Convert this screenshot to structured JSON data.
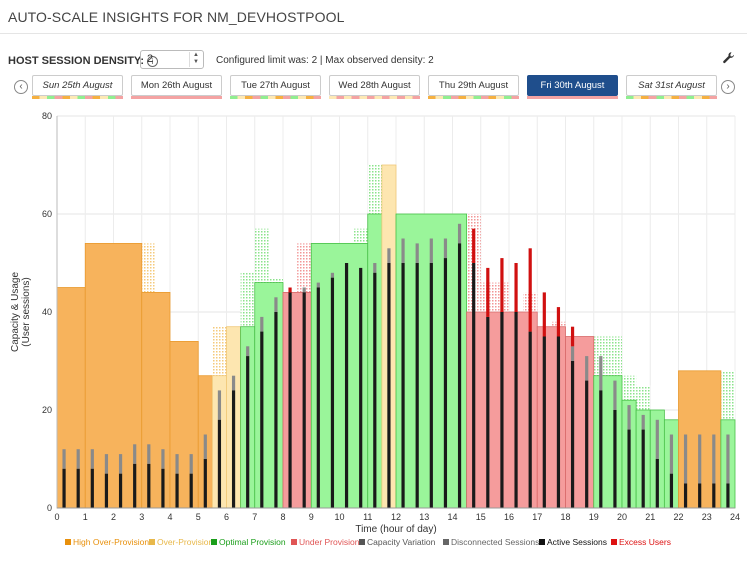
{
  "header": {
    "title": "AUTO-SCALE INSIGHTS FOR NM_DEVHOSTPOOL"
  },
  "density": {
    "label": "HOST SESSION DENSITY:",
    "value": "2",
    "info": "Configured limit was: 2 | Max observed density: 2"
  },
  "days": [
    {
      "label": "Sun 25th August",
      "active": false,
      "italic": true
    },
    {
      "label": "Mon 26th August",
      "active": false,
      "italic": false
    },
    {
      "label": "Tue 27th August",
      "active": false,
      "italic": false
    },
    {
      "label": "Wed 28th August",
      "active": false,
      "italic": false
    },
    {
      "label": "Thu 29th August",
      "active": false,
      "italic": false
    },
    {
      "label": "Fri 30th August",
      "active": true,
      "italic": false
    },
    {
      "label": "Sat 31st August",
      "active": false,
      "italic": true
    }
  ],
  "colors": {
    "high_over": "#f5b041",
    "over": "#fde9b5",
    "optimal": "#90ee90",
    "under": "#f4a3a3",
    "capacity_variation": "#999999",
    "disconnected": "#a0a0a0",
    "active": "#222222",
    "excess": "#dd1111"
  },
  "chart_data": {
    "type": "bar",
    "xlabel": "Time (hour of day)",
    "ylabel": "Capacity & Usage (User sessions)",
    "ylabel_lines": [
      "Capacity & Usage",
      "(User sessions)"
    ],
    "ylim": [
      0,
      80
    ],
    "yticks": [
      0,
      20,
      40,
      60,
      80
    ],
    "xlim": [
      0,
      24
    ],
    "xticks": [
      0,
      1,
      2,
      3,
      4,
      5,
      6,
      7,
      8,
      9,
      10,
      11,
      12,
      13,
      14,
      15,
      16,
      17,
      18,
      19,
      20,
      21,
      22,
      23,
      24
    ],
    "grid": true,
    "legend_position": "bottom",
    "legend": [
      {
        "label": "High Over-Provision",
        "color": "#e8900c"
      },
      {
        "label": "Over-Provision",
        "color": "#e8b84a"
      },
      {
        "label": "Optimal Provision",
        "color": "#1a9e1a"
      },
      {
        "label": "Under Provision",
        "color": "#e05555"
      },
      {
        "label": "Capacity Variation",
        "color": "#555555"
      },
      {
        "label": "Disconnected Sessions",
        "color": "#666666"
      },
      {
        "label": "Active Sessions",
        "color": "#111111"
      },
      {
        "label": "Excess Users",
        "color": "#dd1111"
      }
    ],
    "capacity_segments": [
      {
        "start": 0,
        "end": 1,
        "value": 45,
        "status": "high_over"
      },
      {
        "start": 1,
        "end": 3,
        "value": 54,
        "status": "high_over"
      },
      {
        "start": 3,
        "end": 4,
        "value": 44,
        "status": "high_over"
      },
      {
        "start": 4,
        "end": 5,
        "value": 34,
        "status": "high_over"
      },
      {
        "start": 5,
        "end": 5.5,
        "value": 27,
        "status": "high_over"
      },
      {
        "start": 5.5,
        "end": 6,
        "value": 27,
        "status": "over"
      },
      {
        "start": 6,
        "end": 6.5,
        "value": 37,
        "status": "over"
      },
      {
        "start": 6.5,
        "end": 7,
        "value": 37,
        "status": "optimal"
      },
      {
        "start": 7,
        "end": 8,
        "value": 46,
        "status": "optimal"
      },
      {
        "start": 8,
        "end": 9,
        "value": 44,
        "status": "under"
      },
      {
        "start": 9,
        "end": 11,
        "value": 54,
        "status": "optimal"
      },
      {
        "start": 11,
        "end": 11.5,
        "value": 60,
        "status": "optimal"
      },
      {
        "start": 11.5,
        "end": 12,
        "value": 70,
        "status": "over"
      },
      {
        "start": 12,
        "end": 14.5,
        "value": 60,
        "status": "optimal"
      },
      {
        "start": 14.5,
        "end": 17,
        "value": 40,
        "status": "under"
      },
      {
        "start": 17,
        "end": 18,
        "value": 37,
        "status": "under"
      },
      {
        "start": 18,
        "end": 19,
        "value": 35,
        "status": "under"
      },
      {
        "start": 19,
        "end": 20,
        "value": 27,
        "status": "optimal"
      },
      {
        "start": 20,
        "end": 20.5,
        "value": 22,
        "status": "optimal"
      },
      {
        "start": 20.5,
        "end": 21,
        "value": 20,
        "status": "optimal"
      },
      {
        "start": 21,
        "end": 21.5,
        "value": 20,
        "status": "optimal"
      },
      {
        "start": 21.5,
        "end": 22,
        "value": 18,
        "status": "optimal"
      },
      {
        "start": 22,
        "end": 23.5,
        "value": 28,
        "status": "high_over"
      },
      {
        "start": 23.5,
        "end": 24,
        "value": 18,
        "status": "optimal"
      }
    ],
    "capacity_variation": [
      {
        "start": 1,
        "end": 1.5,
        "value": 54
      },
      {
        "start": 3,
        "end": 3.5,
        "value": 54
      },
      {
        "start": 3.5,
        "end": 4,
        "value": 44
      },
      {
        "start": 5.5,
        "end": 6,
        "value": 37
      },
      {
        "start": 6,
        "end": 6.5,
        "value": 37
      },
      {
        "start": 6.5,
        "end": 7,
        "value": 48
      },
      {
        "start": 7,
        "end": 7.5,
        "value": 57
      },
      {
        "start": 7.5,
        "end": 8,
        "value": 47
      },
      {
        "start": 8.5,
        "end": 9,
        "value": 54
      },
      {
        "start": 10.5,
        "end": 11,
        "value": 57
      },
      {
        "start": 11,
        "end": 11.5,
        "value": 70
      },
      {
        "start": 11.5,
        "end": 12,
        "value": 70
      },
      {
        "start": 12,
        "end": 12.5,
        "value": 60
      },
      {
        "start": 14.5,
        "end": 15,
        "value": 60
      },
      {
        "start": 15,
        "end": 15.5,
        "value": 46
      },
      {
        "start": 15.5,
        "end": 16,
        "value": 46
      },
      {
        "start": 16.5,
        "end": 17,
        "value": 44
      },
      {
        "start": 17.5,
        "end": 18,
        "value": 38
      },
      {
        "start": 18.5,
        "end": 19,
        "value": 35
      },
      {
        "start": 19,
        "end": 19.5,
        "value": 35
      },
      {
        "start": 19.5,
        "end": 20,
        "value": 35
      },
      {
        "start": 20,
        "end": 20.5,
        "value": 27
      },
      {
        "start": 20.5,
        "end": 21,
        "value": 25
      },
      {
        "start": 22,
        "end": 22.5,
        "value": 28
      },
      {
        "start": 23.5,
        "end": 24,
        "value": 28
      }
    ],
    "sessions": [
      {
        "x": 0.25,
        "active": 8,
        "disconnected": 4
      },
      {
        "x": 0.75,
        "active": 8,
        "disconnected": 4
      },
      {
        "x": 1.25,
        "active": 8,
        "disconnected": 4
      },
      {
        "x": 1.75,
        "active": 7,
        "disconnected": 4
      },
      {
        "x": 2.25,
        "active": 7,
        "disconnected": 4
      },
      {
        "x": 2.75,
        "active": 9,
        "disconnected": 4
      },
      {
        "x": 3.25,
        "active": 9,
        "disconnected": 4
      },
      {
        "x": 3.75,
        "active": 8,
        "disconnected": 4
      },
      {
        "x": 4.25,
        "active": 7,
        "disconnected": 4
      },
      {
        "x": 4.75,
        "active": 7,
        "disconnected": 4
      },
      {
        "x": 5.25,
        "active": 10,
        "disconnected": 5
      },
      {
        "x": 5.75,
        "active": 18,
        "disconnected": 6
      },
      {
        "x": 6.25,
        "active": 24,
        "disconnected": 3
      },
      {
        "x": 6.75,
        "active": 31,
        "disconnected": 2
      },
      {
        "x": 7.25,
        "active": 36,
        "disconnected": 3
      },
      {
        "x": 7.75,
        "active": 40,
        "disconnected": 3
      },
      {
        "x": 8.25,
        "active": 44,
        "disconnected": 0,
        "excess": 1
      },
      {
        "x": 8.75,
        "active": 44,
        "disconnected": 1
      },
      {
        "x": 9.25,
        "active": 45,
        "disconnected": 1
      },
      {
        "x": 9.75,
        "active": 47,
        "disconnected": 1
      },
      {
        "x": 10.25,
        "active": 50,
        "disconnected": 0
      },
      {
        "x": 10.75,
        "active": 49,
        "disconnected": 0
      },
      {
        "x": 11.25,
        "active": 48,
        "disconnected": 2
      },
      {
        "x": 11.75,
        "active": 50,
        "disconnected": 3
      },
      {
        "x": 12.25,
        "active": 50,
        "disconnected": 5
      },
      {
        "x": 12.75,
        "active": 50,
        "disconnected": 4
      },
      {
        "x": 13.25,
        "active": 50,
        "disconnected": 5
      },
      {
        "x": 13.75,
        "active": 51,
        "disconnected": 4
      },
      {
        "x": 14.25,
        "active": 54,
        "disconnected": 4
      },
      {
        "x": 14.75,
        "active": 50,
        "disconnected": 0,
        "excess": 7
      },
      {
        "x": 15.25,
        "active": 39,
        "disconnected": 0,
        "excess": 10
      },
      {
        "x": 15.75,
        "active": 40,
        "disconnected": 0,
        "excess": 11
      },
      {
        "x": 16.25,
        "active": 40,
        "disconnected": 0,
        "excess": 10
      },
      {
        "x": 16.75,
        "active": 36,
        "disconnected": 0,
        "excess": 17
      },
      {
        "x": 17.25,
        "active": 35,
        "disconnected": 0,
        "excess": 9
      },
      {
        "x": 17.75,
        "active": 35,
        "disconnected": 0,
        "excess": 6
      },
      {
        "x": 18.25,
        "active": 30,
        "disconnected": 3,
        "excess": 4
      },
      {
        "x": 18.75,
        "active": 26,
        "disconnected": 5
      },
      {
        "x": 19.25,
        "active": 24,
        "disconnected": 7
      },
      {
        "x": 19.75,
        "active": 20,
        "disconnected": 6
      },
      {
        "x": 20.25,
        "active": 16,
        "disconnected": 5
      },
      {
        "x": 20.75,
        "active": 16,
        "disconnected": 3
      },
      {
        "x": 21.25,
        "active": 10,
        "disconnected": 8
      },
      {
        "x": 21.75,
        "active": 7,
        "disconnected": 8
      },
      {
        "x": 22.25,
        "active": 5,
        "disconnected": 10
      },
      {
        "x": 22.75,
        "active": 5,
        "disconnected": 10
      },
      {
        "x": 23.25,
        "active": 5,
        "disconnected": 10
      },
      {
        "x": 23.75,
        "active": 5,
        "disconnected": 10
      }
    ]
  }
}
